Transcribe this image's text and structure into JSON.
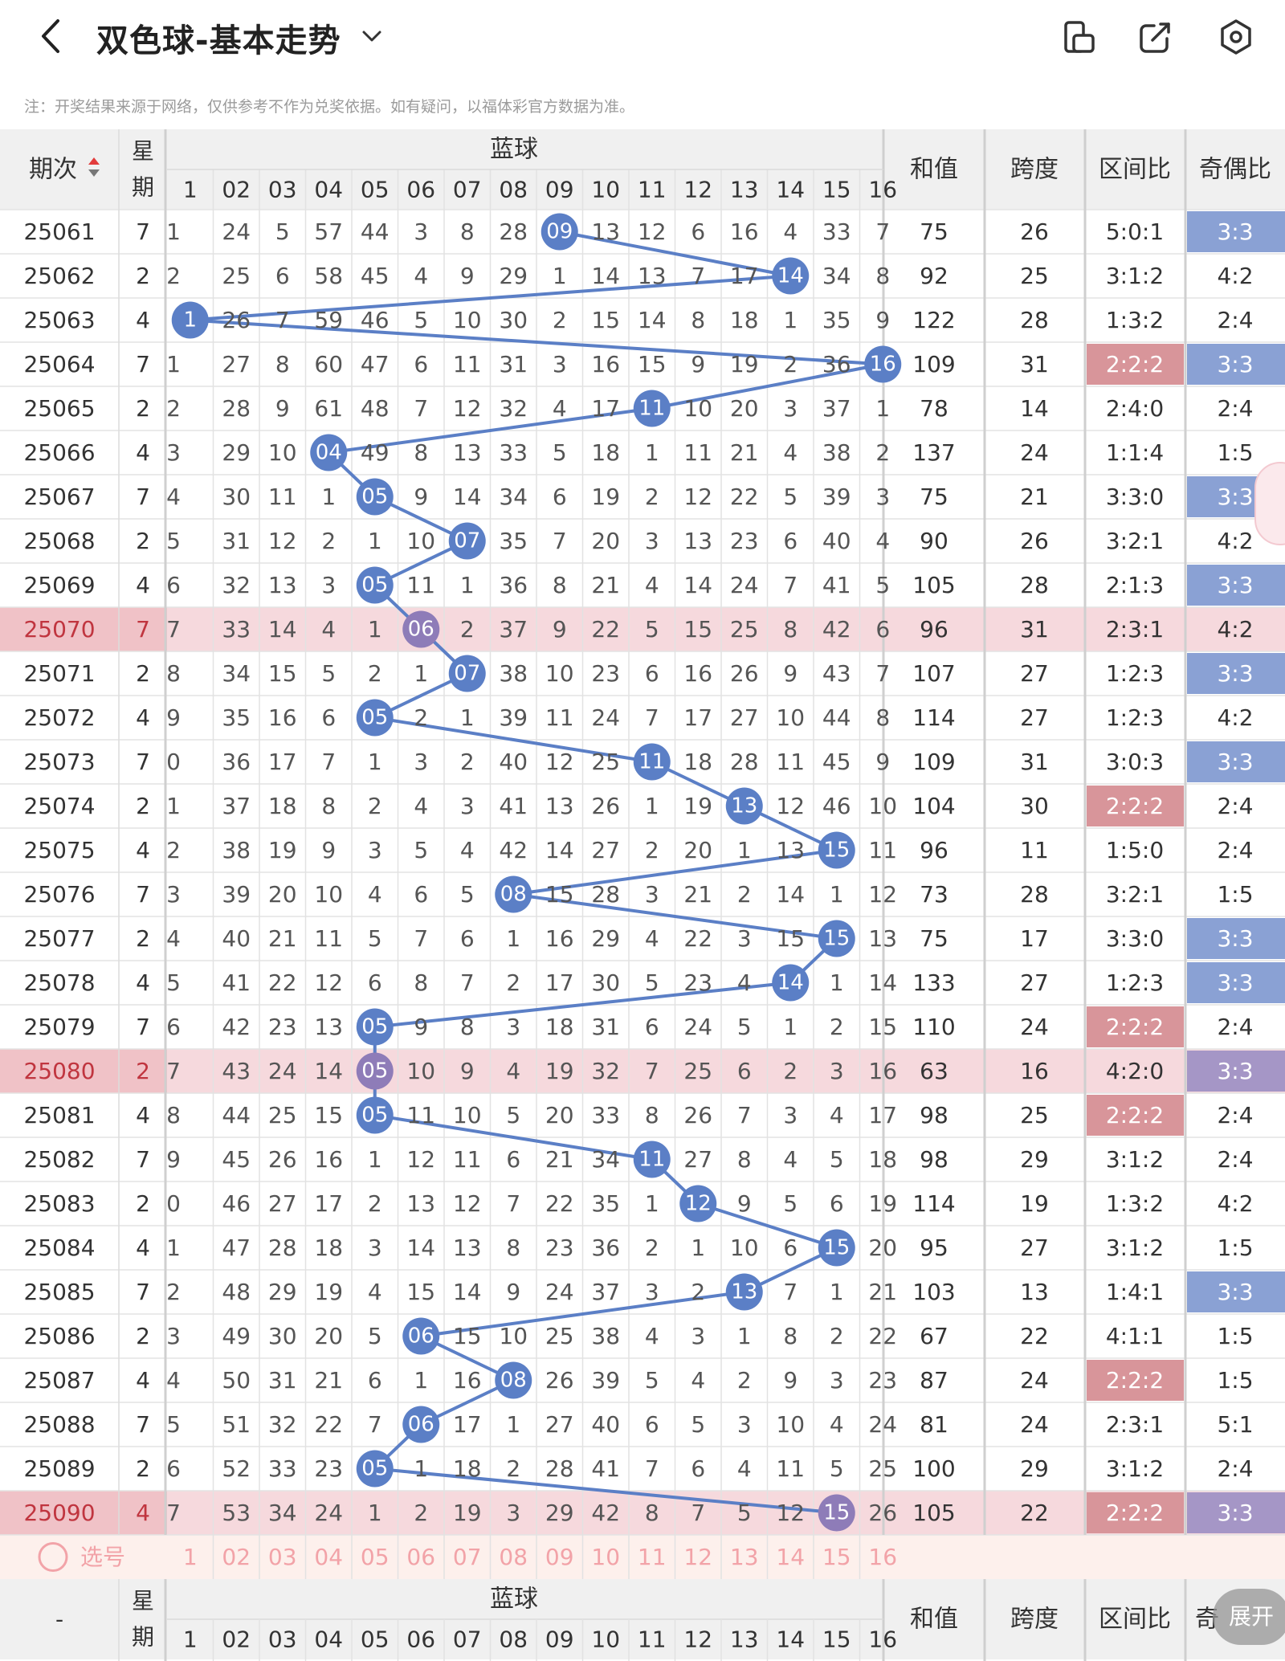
{
  "header": {
    "title": "双色球-基本走势",
    "note": "注：开奖结果来源于网络，仅供参考不作为兑奖依据。如有疑问，以福体彩官方数据为准。",
    "icons": [
      "back-icon",
      "dropdown-icon",
      "device-icon",
      "share-icon",
      "settings-icon"
    ]
  },
  "table": {
    "period_header": "期次",
    "week_header_1": "星",
    "week_header_2": "期",
    "blue_header": "蓝球",
    "sum_header": "和值",
    "span_header": "跨度",
    "zone_header": "区间比",
    "odd_header": "奇偶比",
    "col_labels": [
      "1",
      "02",
      "03",
      "04",
      "05",
      "06",
      "07",
      "08",
      "09",
      "10",
      "11",
      "12",
      "13",
      "14",
      "15",
      "16"
    ],
    "rows": [
      {
        "period": "25061",
        "week": "7",
        "blue": 9,
        "cells": [
          "1",
          "24",
          "5",
          "57",
          "44",
          "3",
          "8",
          "28",
          "09",
          "13",
          "12",
          "6",
          "16",
          "4",
          "33",
          "7"
        ],
        "sum": "75",
        "span": "26",
        "zone": "5:0:1",
        "odd": "3:3",
        "zone_hl": "",
        "odd_hl": "blue",
        "row_hl": false
      },
      {
        "period": "25062",
        "week": "2",
        "blue": 14,
        "cells": [
          "2",
          "25",
          "6",
          "58",
          "45",
          "4",
          "9",
          "29",
          "1",
          "14",
          "13",
          "7",
          "17",
          "14",
          "34",
          "8"
        ],
        "sum": "92",
        "span": "25",
        "zone": "3:1:2",
        "odd": "4:2",
        "zone_hl": "",
        "odd_hl": "",
        "row_hl": false
      },
      {
        "period": "25063",
        "week": "4",
        "blue": 1,
        "cells": [
          "1",
          "26",
          "7",
          "59",
          "46",
          "5",
          "10",
          "30",
          "2",
          "15",
          "14",
          "8",
          "18",
          "1",
          "35",
          "9"
        ],
        "sum": "122",
        "span": "28",
        "zone": "1:3:2",
        "odd": "2:4",
        "zone_hl": "",
        "odd_hl": "",
        "row_hl": false
      },
      {
        "period": "25064",
        "week": "7",
        "blue": 16,
        "cells": [
          "1",
          "27",
          "8",
          "60",
          "47",
          "6",
          "11",
          "31",
          "3",
          "16",
          "15",
          "9",
          "19",
          "2",
          "36",
          "16"
        ],
        "sum": "109",
        "span": "31",
        "zone": "2:2:2",
        "odd": "3:3",
        "zone_hl": "red",
        "odd_hl": "blue",
        "row_hl": false
      },
      {
        "period": "25065",
        "week": "2",
        "blue": 11,
        "cells": [
          "2",
          "28",
          "9",
          "61",
          "48",
          "7",
          "12",
          "32",
          "4",
          "17",
          "11",
          "10",
          "20",
          "3",
          "37",
          "1"
        ],
        "sum": "78",
        "span": "14",
        "zone": "2:4:0",
        "odd": "2:4",
        "zone_hl": "",
        "odd_hl": "",
        "row_hl": false
      },
      {
        "period": "25066",
        "week": "4",
        "blue": 4,
        "cells": [
          "3",
          "29",
          "10",
          "04",
          "49",
          "8",
          "13",
          "33",
          "5",
          "18",
          "1",
          "11",
          "21",
          "4",
          "38",
          "2"
        ],
        "sum": "137",
        "span": "24",
        "zone": "1:1:4",
        "odd": "1:5",
        "zone_hl": "",
        "odd_hl": "",
        "row_hl": false
      },
      {
        "period": "25067",
        "week": "7",
        "blue": 5,
        "cells": [
          "4",
          "30",
          "11",
          "1",
          "05",
          "9",
          "14",
          "34",
          "6",
          "19",
          "2",
          "12",
          "22",
          "5",
          "39",
          "3"
        ],
        "sum": "75",
        "span": "21",
        "zone": "3:3:0",
        "odd": "3:3",
        "zone_hl": "",
        "odd_hl": "blue",
        "row_hl": false
      },
      {
        "period": "25068",
        "week": "2",
        "blue": 7,
        "cells": [
          "5",
          "31",
          "12",
          "2",
          "1",
          "10",
          "07",
          "35",
          "7",
          "20",
          "3",
          "13",
          "23",
          "6",
          "40",
          "4"
        ],
        "sum": "90",
        "span": "26",
        "zone": "3:2:1",
        "odd": "4:2",
        "zone_hl": "",
        "odd_hl": "",
        "row_hl": false
      },
      {
        "period": "25069",
        "week": "4",
        "blue": 5,
        "cells": [
          "6",
          "32",
          "13",
          "3",
          "05",
          "11",
          "1",
          "36",
          "8",
          "21",
          "4",
          "14",
          "24",
          "7",
          "41",
          "5"
        ],
        "sum": "105",
        "span": "28",
        "zone": "2:1:3",
        "odd": "3:3",
        "zone_hl": "",
        "odd_hl": "blue",
        "row_hl": false
      },
      {
        "period": "25070",
        "week": "7",
        "blue": 6,
        "cells": [
          "7",
          "33",
          "14",
          "4",
          "1",
          "06",
          "2",
          "37",
          "9",
          "22",
          "5",
          "15",
          "25",
          "8",
          "42",
          "6"
        ],
        "sum": "96",
        "span": "31",
        "zone": "2:3:1",
        "odd": "4:2",
        "zone_hl": "",
        "odd_hl": "",
        "row_hl": true
      },
      {
        "period": "25071",
        "week": "2",
        "blue": 7,
        "cells": [
          "8",
          "34",
          "15",
          "5",
          "2",
          "1",
          "07",
          "38",
          "10",
          "23",
          "6",
          "16",
          "26",
          "9",
          "43",
          "7"
        ],
        "sum": "107",
        "span": "27",
        "zone": "1:2:3",
        "odd": "3:3",
        "zone_hl": "",
        "odd_hl": "blue",
        "row_hl": false
      },
      {
        "period": "25072",
        "week": "4",
        "blue": 5,
        "cells": [
          "9",
          "35",
          "16",
          "6",
          "05",
          "2",
          "1",
          "39",
          "11",
          "24",
          "7",
          "17",
          "27",
          "10",
          "44",
          "8"
        ],
        "sum": "114",
        "span": "27",
        "zone": "1:2:3",
        "odd": "4:2",
        "zone_hl": "",
        "odd_hl": "",
        "row_hl": false
      },
      {
        "period": "25073",
        "week": "7",
        "blue": 11,
        "cells": [
          "0",
          "36",
          "17",
          "7",
          "1",
          "3",
          "2",
          "40",
          "12",
          "25",
          "11",
          "18",
          "28",
          "11",
          "45",
          "9"
        ],
        "sum": "109",
        "span": "31",
        "zone": "3:0:3",
        "odd": "3:3",
        "zone_hl": "",
        "odd_hl": "blue",
        "row_hl": false
      },
      {
        "period": "25074",
        "week": "2",
        "blue": 13,
        "cells": [
          "1",
          "37",
          "18",
          "8",
          "2",
          "4",
          "3",
          "41",
          "13",
          "26",
          "1",
          "19",
          "13",
          "12",
          "46",
          "10"
        ],
        "sum": "104",
        "span": "30",
        "zone": "2:2:2",
        "odd": "2:4",
        "zone_hl": "red",
        "odd_hl": "",
        "row_hl": false
      },
      {
        "period": "25075",
        "week": "4",
        "blue": 15,
        "cells": [
          "2",
          "38",
          "19",
          "9",
          "3",
          "5",
          "4",
          "42",
          "14",
          "27",
          "2",
          "20",
          "1",
          "13",
          "15",
          "11"
        ],
        "sum": "96",
        "span": "11",
        "zone": "1:5:0",
        "odd": "2:4",
        "zone_hl": "",
        "odd_hl": "",
        "row_hl": false
      },
      {
        "period": "25076",
        "week": "7",
        "blue": 8,
        "cells": [
          "3",
          "39",
          "20",
          "10",
          "4",
          "6",
          "5",
          "08",
          "15",
          "28",
          "3",
          "21",
          "2",
          "14",
          "1",
          "12"
        ],
        "sum": "73",
        "span": "28",
        "zone": "3:2:1",
        "odd": "1:5",
        "zone_hl": "",
        "odd_hl": "",
        "row_hl": false
      },
      {
        "period": "25077",
        "week": "2",
        "blue": 15,
        "cells": [
          "4",
          "40",
          "21",
          "11",
          "5",
          "7",
          "6",
          "1",
          "16",
          "29",
          "4",
          "22",
          "3",
          "15",
          "15",
          "13"
        ],
        "sum": "75",
        "span": "17",
        "zone": "3:3:0",
        "odd": "3:3",
        "zone_hl": "",
        "odd_hl": "blue",
        "row_hl": false
      },
      {
        "period": "25078",
        "week": "4",
        "blue": 14,
        "cells": [
          "5",
          "41",
          "22",
          "12",
          "6",
          "8",
          "7",
          "2",
          "17",
          "30",
          "5",
          "23",
          "4",
          "14",
          "1",
          "14"
        ],
        "sum": "133",
        "span": "27",
        "zone": "1:2:3",
        "odd": "3:3",
        "zone_hl": "",
        "odd_hl": "blue",
        "row_hl": false
      },
      {
        "period": "25079",
        "week": "7",
        "blue": 5,
        "cells": [
          "6",
          "42",
          "23",
          "13",
          "05",
          "9",
          "8",
          "3",
          "18",
          "31",
          "6",
          "24",
          "5",
          "1",
          "2",
          "15"
        ],
        "sum": "110",
        "span": "24",
        "zone": "2:2:2",
        "odd": "2:4",
        "zone_hl": "red",
        "odd_hl": "",
        "row_hl": false
      },
      {
        "period": "25080",
        "week": "2",
        "blue": 5,
        "cells": [
          "7",
          "43",
          "24",
          "14",
          "05",
          "10",
          "9",
          "4",
          "19",
          "32",
          "7",
          "25",
          "6",
          "2",
          "3",
          "16"
        ],
        "sum": "63",
        "span": "16",
        "zone": "4:2:0",
        "odd": "3:3",
        "zone_hl": "",
        "odd_hl": "purple",
        "row_hl": true
      },
      {
        "period": "25081",
        "week": "4",
        "blue": 5,
        "cells": [
          "8",
          "44",
          "25",
          "15",
          "05",
          "11",
          "10",
          "5",
          "20",
          "33",
          "8",
          "26",
          "7",
          "3",
          "4",
          "17"
        ],
        "sum": "98",
        "span": "25",
        "zone": "2:2:2",
        "odd": "2:4",
        "zone_hl": "red",
        "odd_hl": "",
        "row_hl": false
      },
      {
        "period": "25082",
        "week": "7",
        "blue": 11,
        "cells": [
          "9",
          "45",
          "26",
          "16",
          "1",
          "12",
          "11",
          "6",
          "21",
          "34",
          "11",
          "27",
          "8",
          "4",
          "5",
          "18"
        ],
        "sum": "98",
        "span": "29",
        "zone": "3:1:2",
        "odd": "2:4",
        "zone_hl": "",
        "odd_hl": "",
        "row_hl": false
      },
      {
        "period": "25083",
        "week": "2",
        "blue": 12,
        "cells": [
          "0",
          "46",
          "27",
          "17",
          "2",
          "13",
          "12",
          "7",
          "22",
          "35",
          "1",
          "12",
          "9",
          "5",
          "6",
          "19"
        ],
        "sum": "114",
        "span": "19",
        "zone": "1:3:2",
        "odd": "4:2",
        "zone_hl": "",
        "odd_hl": "",
        "row_hl": false
      },
      {
        "period": "25084",
        "week": "4",
        "blue": 15,
        "cells": [
          "1",
          "47",
          "28",
          "18",
          "3",
          "14",
          "13",
          "8",
          "23",
          "36",
          "2",
          "1",
          "10",
          "6",
          "15",
          "20"
        ],
        "sum": "95",
        "span": "27",
        "zone": "3:1:2",
        "odd": "1:5",
        "zone_hl": "",
        "odd_hl": "",
        "row_hl": false
      },
      {
        "period": "25085",
        "week": "7",
        "blue": 13,
        "cells": [
          "2",
          "48",
          "29",
          "19",
          "4",
          "15",
          "14",
          "9",
          "24",
          "37",
          "3",
          "2",
          "13",
          "7",
          "1",
          "21"
        ],
        "sum": "103",
        "span": "13",
        "zone": "1:4:1",
        "odd": "3:3",
        "zone_hl": "",
        "odd_hl": "blue",
        "row_hl": false
      },
      {
        "period": "25086",
        "week": "2",
        "blue": 6,
        "cells": [
          "3",
          "49",
          "30",
          "20",
          "5",
          "06",
          "15",
          "10",
          "25",
          "38",
          "4",
          "3",
          "1",
          "8",
          "2",
          "22"
        ],
        "sum": "67",
        "span": "22",
        "zone": "4:1:1",
        "odd": "1:5",
        "zone_hl": "",
        "odd_hl": "",
        "row_hl": false
      },
      {
        "period": "25087",
        "week": "4",
        "blue": 8,
        "cells": [
          "4",
          "50",
          "31",
          "21",
          "6",
          "1",
          "16",
          "08",
          "26",
          "39",
          "5",
          "4",
          "2",
          "9",
          "3",
          "23"
        ],
        "sum": "87",
        "span": "24",
        "zone": "2:2:2",
        "odd": "1:5",
        "zone_hl": "red",
        "odd_hl": "",
        "row_hl": false
      },
      {
        "period": "25088",
        "week": "7",
        "blue": 6,
        "cells": [
          "5",
          "51",
          "32",
          "22",
          "7",
          "06",
          "17",
          "1",
          "27",
          "40",
          "6",
          "5",
          "3",
          "10",
          "4",
          "24"
        ],
        "sum": "81",
        "span": "24",
        "zone": "2:3:1",
        "odd": "5:1",
        "zone_hl": "",
        "odd_hl": "",
        "row_hl": false
      },
      {
        "period": "25089",
        "week": "2",
        "blue": 5,
        "cells": [
          "6",
          "52",
          "33",
          "23",
          "05",
          "1",
          "18",
          "2",
          "28",
          "41",
          "7",
          "6",
          "4",
          "11",
          "5",
          "25"
        ],
        "sum": "100",
        "span": "29",
        "zone": "3:1:2",
        "odd": "2:4",
        "zone_hl": "",
        "odd_hl": "",
        "row_hl": false
      },
      {
        "period": "25090",
        "week": "4",
        "blue": 15,
        "cells": [
          "7",
          "53",
          "34",
          "24",
          "1",
          "2",
          "19",
          "3",
          "29",
          "42",
          "8",
          "7",
          "5",
          "12",
          "15",
          "26"
        ],
        "sum": "105",
        "span": "22",
        "zone": "2:2:2",
        "odd": "3:3",
        "zone_hl": "red",
        "odd_hl": "purple",
        "row_hl": true
      }
    ],
    "pick_label": "选号",
    "footer_period": "-",
    "footer_odd_partial": "奇",
    "expand_label": "展开"
  },
  "colors": {
    "ball": "#5b7fc6",
    "ball_highlight": "#8e7cb8",
    "row_highlight": "#f6d9dd",
    "header_bg": "#f0f0f0",
    "blue_badge": "#8aa1d4",
    "red_badge": "#d8959a",
    "purple_badge": "#a596c6",
    "pick_text": "#f2a3a8",
    "pick_bg": "#fdf0ec"
  }
}
